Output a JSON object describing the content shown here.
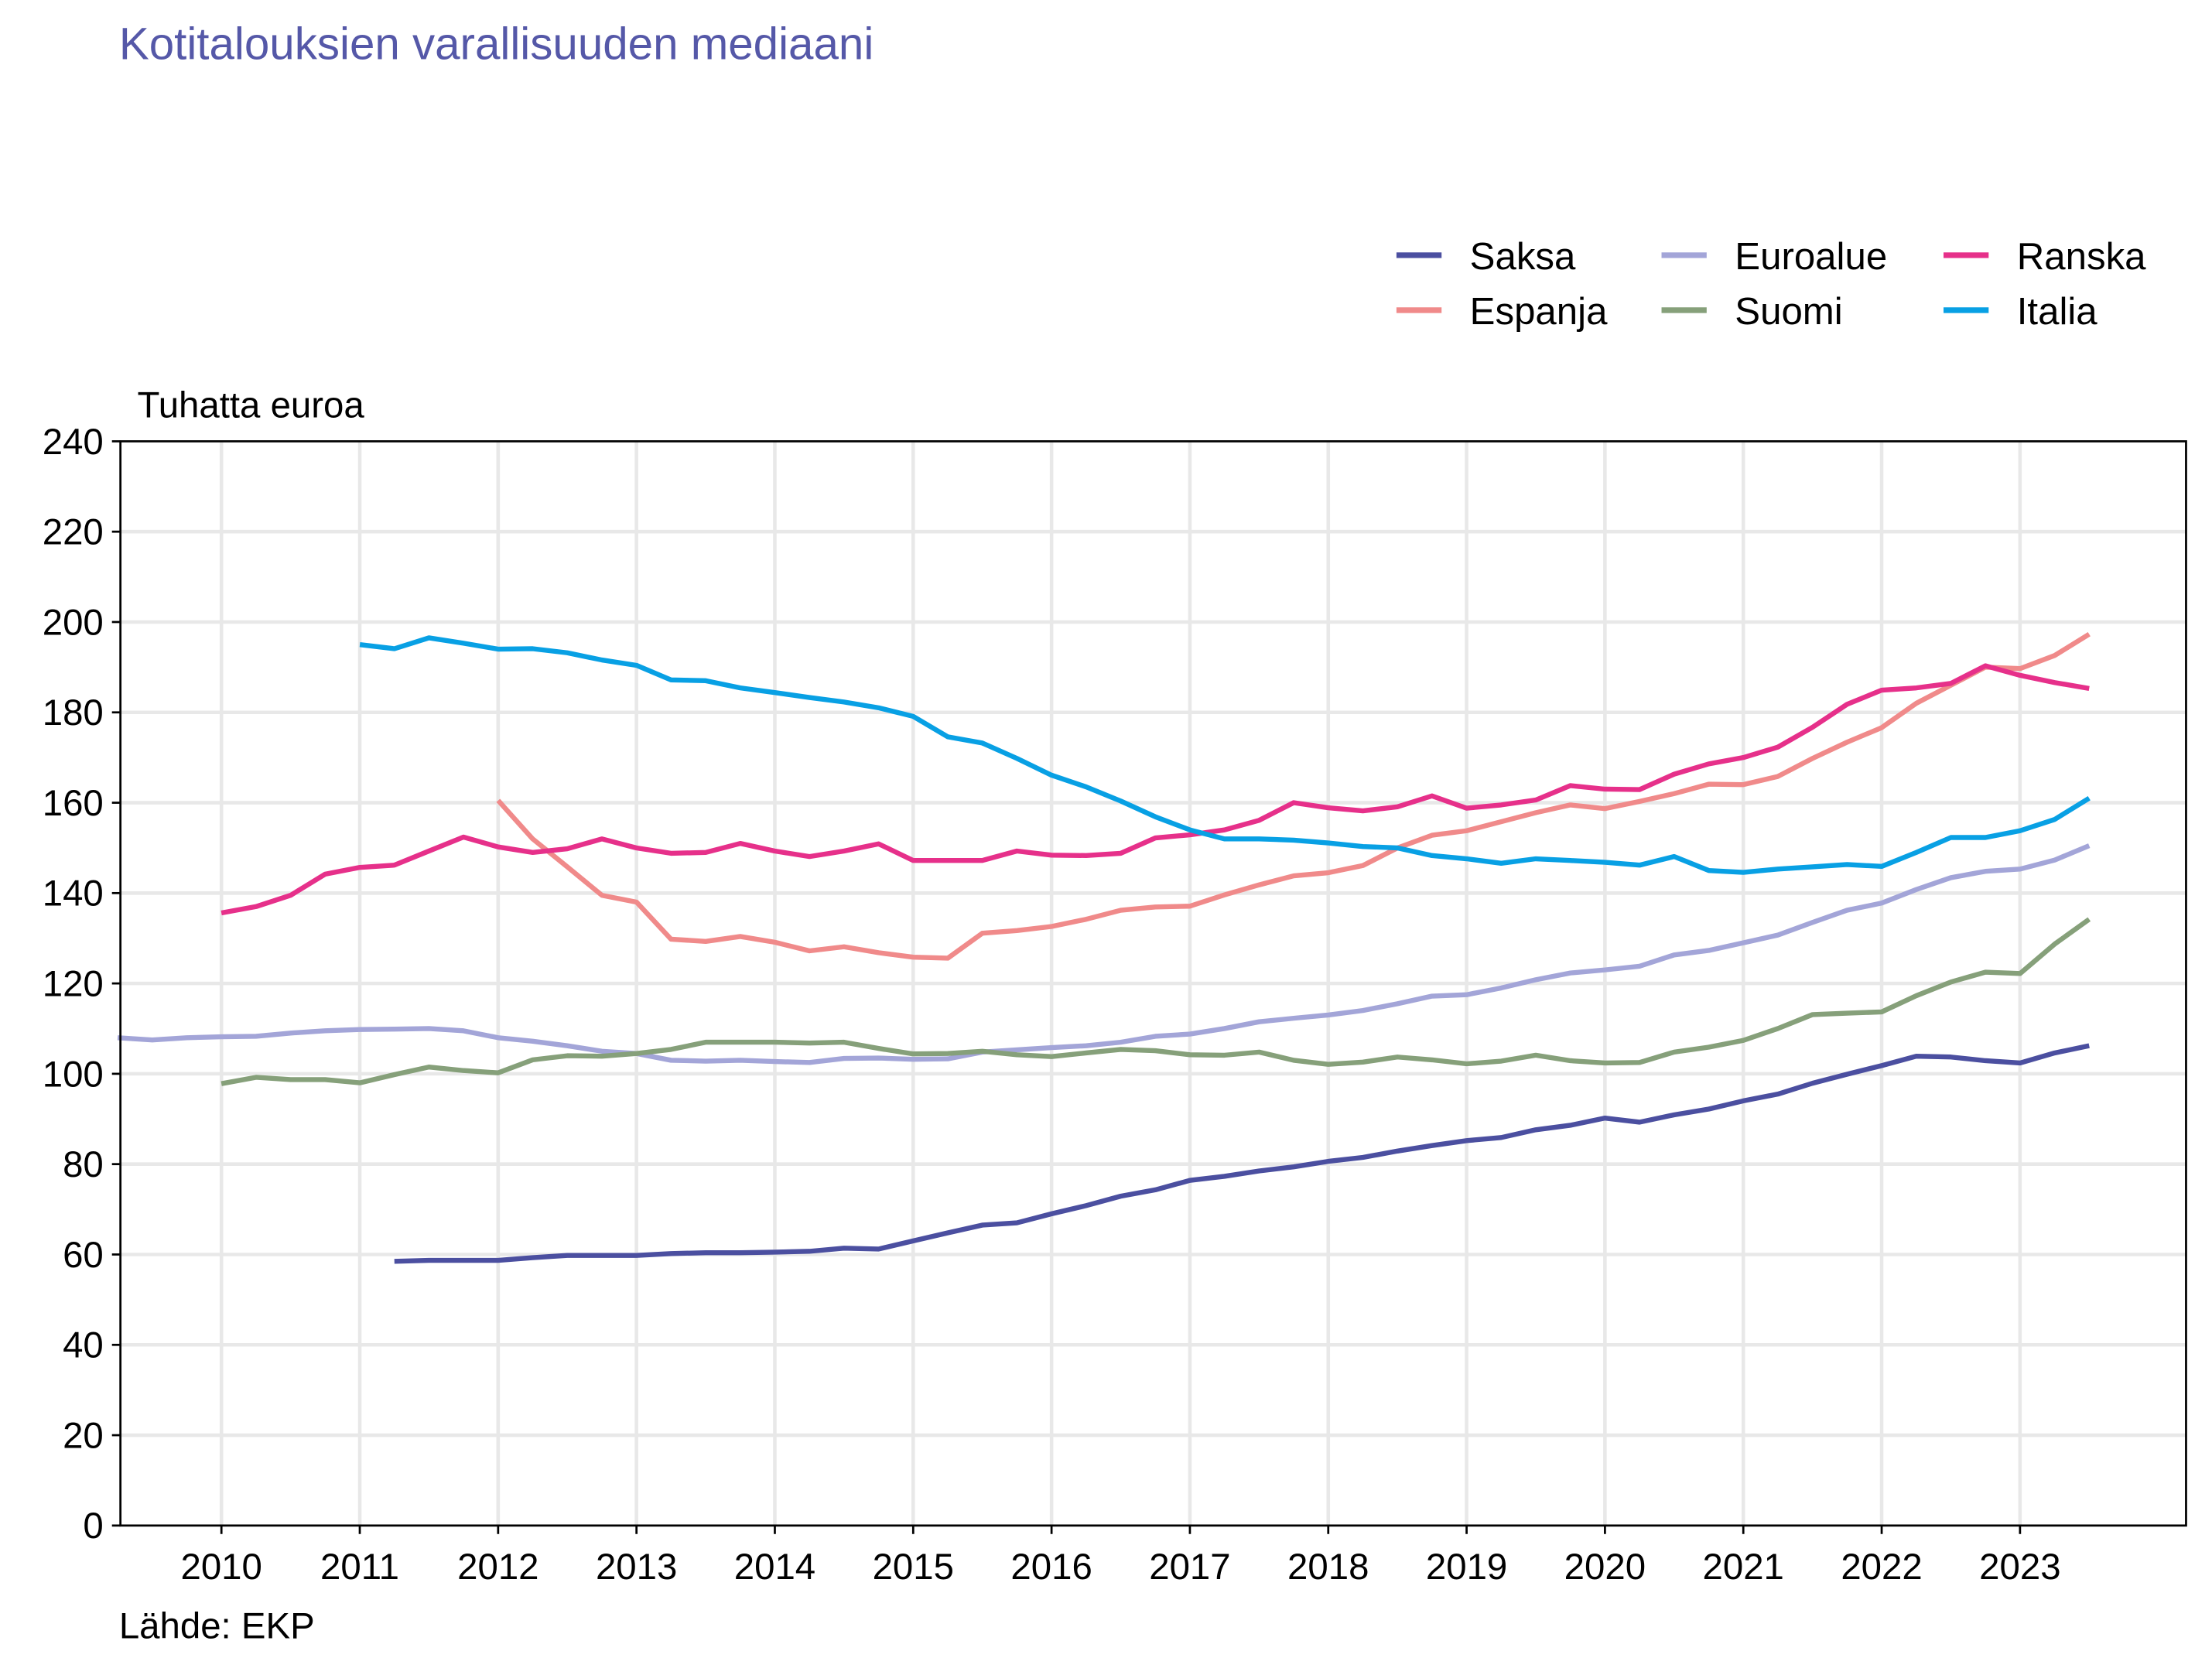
{
  "chart_data": {
    "type": "line",
    "title": "Kotitalouksien varallisuuden mediaani",
    "ylabel": "Tuhatta euroa",
    "source": "Lähde: EKP",
    "xlim": [
      2009.27,
      2024.2
    ],
    "ylim": [
      0,
      240
    ],
    "yticks": [
      0,
      20,
      40,
      60,
      80,
      100,
      120,
      140,
      160,
      180,
      200,
      220,
      240
    ],
    "xticks": [
      2010,
      2011,
      2012,
      2013,
      2014,
      2015,
      2016,
      2017,
      2018,
      2019,
      2020,
      2021,
      2022,
      2023
    ],
    "grid": true,
    "legend_position": "top-right",
    "frequency": "quarterly",
    "series": [
      {
        "name": "Saksa",
        "color": "#4b4fa0",
        "start": 2011.25,
        "values": [
          58.5,
          58.7,
          58.7,
          58.7,
          59.3,
          59.8,
          59.8,
          59.8,
          60.2,
          60.4,
          60.4,
          60.5,
          60.7,
          61.4,
          61.2,
          63,
          64.8,
          66.5,
          67,
          69,
          70.8,
          72.9,
          74.3,
          76.4,
          77.3,
          78.5,
          79.4,
          80.6,
          81.5,
          82.9,
          84.1,
          85.2,
          85.9,
          87.6,
          88.6,
          90.2,
          89.3,
          90.9,
          92.2,
          94,
          95.5,
          97.9,
          99.9,
          101.8,
          103.9,
          103.7,
          102.9,
          102.4,
          104.6,
          106.2
        ]
      },
      {
        "name": "Espanja",
        "color": "#f08a8a",
        "start": 2012,
        "values": [
          160.5,
          152,
          145.8,
          139.5,
          138,
          129.8,
          129.3,
          130.4,
          129.1,
          127.2,
          128.1,
          126.8,
          125.8,
          125.6,
          131.1,
          131.7,
          132.6,
          134.2,
          136.2,
          136.9,
          137.1,
          139.6,
          141.8,
          143.8,
          144.5,
          146.1,
          150,
          152.8,
          153.8,
          155.8,
          157.8,
          159.5,
          158.7,
          160.3,
          162,
          164.1,
          164,
          165.8,
          169.8,
          173.4,
          176.6,
          182,
          186,
          190,
          189.7,
          192.6,
          197.3
        ]
      },
      {
        "name": "Euroalue",
        "color": "#a3a5d8",
        "start": 2009.25,
        "values": [
          108,
          107.5,
          108,
          108.2,
          108.3,
          109,
          109.5,
          109.8,
          109.9,
          110,
          109.5,
          108,
          107.2,
          106.2,
          105,
          104.5,
          103,
          102.8,
          103,
          102.7,
          102.5,
          103.4,
          103.5,
          103.2,
          103.3,
          104.8,
          105.3,
          105.8,
          106.2,
          107,
          108.3,
          108.8,
          110,
          111.5,
          112.3,
          113,
          114,
          115.5,
          117.2,
          117.5,
          119,
          120.8,
          122.3,
          123,
          123.8,
          126.3,
          127.3,
          129,
          130.7,
          133.5,
          136.2,
          137.8,
          140.8,
          143.4,
          144.8,
          145.3,
          147.3,
          150.5
        ]
      },
      {
        "name": "Suomi",
        "color": "#86a07a",
        "start": 2010,
        "values": [
          97.8,
          99.2,
          98.7,
          98.7,
          98,
          99.8,
          101.5,
          100.7,
          100.2,
          103.1,
          104,
          103.9,
          104.5,
          105.4,
          107,
          107,
          107,
          106.8,
          107,
          105.6,
          104.4,
          104.5,
          105,
          104.2,
          103.8,
          104.6,
          105.4,
          105.1,
          104.2,
          104.1,
          104.8,
          103,
          102.1,
          102.6,
          103.7,
          103.1,
          102.2,
          102.8,
          104.1,
          102.9,
          102.4,
          102.5,
          104.8,
          105.9,
          107.4,
          110,
          113.1,
          113.4,
          113.7,
          117.3,
          120.3,
          122.5,
          122.2,
          128.7,
          134.2
        ]
      },
      {
        "name": "Ranska",
        "color": "#e6308a",
        "start": 2010,
        "values": [
          135.6,
          137,
          139.5,
          144.2,
          145.7,
          146.2,
          149.3,
          152.4,
          150.2,
          149,
          149.8,
          152,
          150,
          148.8,
          149,
          151,
          149.3,
          148.1,
          149.3,
          150.9,
          147.2,
          147.2,
          147.2,
          149.3,
          148.4,
          148.3,
          148.8,
          152.2,
          152.9,
          154,
          156.1,
          160,
          158.9,
          158.2,
          159.1,
          161.5,
          158.8,
          159.5,
          160.6,
          163.8,
          163,
          162.9,
          166.3,
          168.6,
          170,
          172.3,
          176.7,
          181.8,
          184.9,
          185.4,
          186.4,
          190.3,
          188.2,
          186.6,
          185.3
        ]
      },
      {
        "name": "Italia",
        "color": "#08a0e4",
        "start": 2011,
        "values": [
          195,
          194.1,
          196.5,
          195.3,
          194,
          194.1,
          193.2,
          191.6,
          190.4,
          187.2,
          187,
          185.4,
          184.4,
          183.3,
          182.3,
          181,
          179.1,
          174.6,
          173.2,
          169.8,
          166.1,
          163.5,
          160.4,
          156.9,
          154,
          152,
          152,
          151.7,
          151.1,
          150.3,
          150,
          148.3,
          147.6,
          146.6,
          147.6,
          147.2,
          146.8,
          146.2,
          148.1,
          145,
          144.6,
          145.3,
          145.8,
          146.3,
          145.9,
          149,
          152.3,
          152.3,
          153.8,
          156.3,
          161
        ]
      }
    ]
  }
}
